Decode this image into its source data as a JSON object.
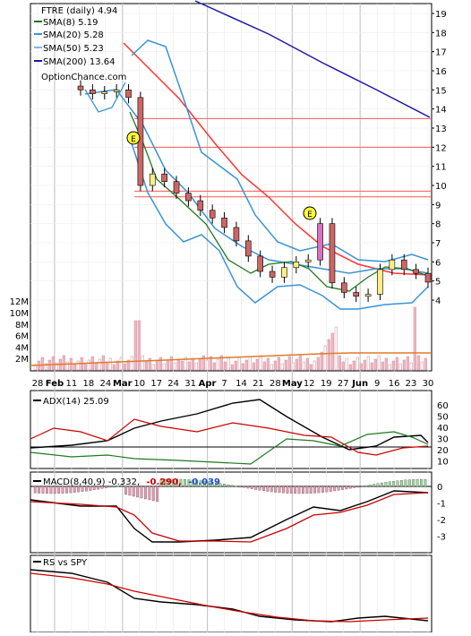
{
  "chart_data": [
    {
      "type": "candlestick",
      "panel": "price",
      "legend": [
        {
          "label": "FTRE (daily)",
          "value": "4.94",
          "color": "#000000",
          "marker": "none"
        },
        {
          "label": "SMA(8)",
          "value": "5.19",
          "color": "#1f7a1f",
          "marker": "line"
        },
        {
          "label": "SMA(20)",
          "value": "5.28",
          "color": "#3a93d6",
          "marker": "line"
        },
        {
          "label": "SMA(50)",
          "value": "5.23",
          "color": "#ff3333",
          "marker": "line"
        },
        {
          "label": "SMA(200)",
          "value": "13.64",
          "color": "#1a1aa6",
          "marker": "line"
        }
      ],
      "watermark": "OptionChance.com",
      "ylim": [
        3.5,
        19.5
      ],
      "y_ticks": [
        4,
        5,
        6,
        7,
        8,
        9,
        10,
        11,
        12,
        13,
        14,
        15,
        16,
        17,
        18,
        19
      ],
      "volume_ticks": [
        "12M",
        "10M",
        "8M",
        "6M",
        "4M",
        "2M"
      ],
      "x_ticks": [
        "28",
        "Feb",
        "11",
        "18",
        "24",
        "Mar",
        "10",
        "17",
        "24",
        "31",
        "Apr",
        "7",
        "14",
        "21",
        "28",
        "May",
        "12",
        "19",
        "27",
        "Jun",
        "9",
        "16",
        "23",
        "30"
      ],
      "earnings_markers": [
        {
          "label": "E",
          "date_index": 0
        },
        {
          "label": "E",
          "date_index": 1
        }
      ],
      "resistance_levels": [
        13.5,
        12.0,
        9.7,
        9.4
      ],
      "series_close_approx": [
        15.0,
        14.8,
        14.9,
        15.0,
        14.6,
        10.0,
        10.6,
        10.2,
        9.6,
        9.2,
        8.7,
        8.3,
        7.8,
        7.1,
        6.3,
        5.5,
        5.2,
        5.7,
        6.0,
        6.1,
        8.0,
        4.9,
        4.4,
        4.2,
        4.3,
        5.6,
        6.1,
        5.6,
        5.4,
        4.94
      ],
      "sma200_endpoints": [
        19.5,
        13.6
      ],
      "sma50_endpoints": [
        17.2,
        5.2
      ]
    },
    {
      "type": "line",
      "panel": "indicator",
      "title": "ADX(14)",
      "value": "25.09",
      "y_ticks": [
        "60",
        "50",
        "40",
        "30",
        "20",
        "10"
      ],
      "series_colors": [
        "#000000",
        "#cc0000",
        "#1f7a1f"
      ]
    },
    {
      "type": "bar-line",
      "panel": "macd",
      "title": "MACD(8,40,9)",
      "values": [
        "-0.332,",
        "-0.290,",
        "-0.039"
      ],
      "value_colors": [
        "#000000",
        "#cc0000",
        "#1f4fcc"
      ],
      "y_ticks": [
        "0",
        "-1",
        "-2",
        "-3"
      ]
    },
    {
      "type": "line",
      "panel": "relative-strength",
      "title": "RS vs SPY",
      "series_colors": [
        "#000000",
        "#cc0000"
      ]
    }
  ]
}
